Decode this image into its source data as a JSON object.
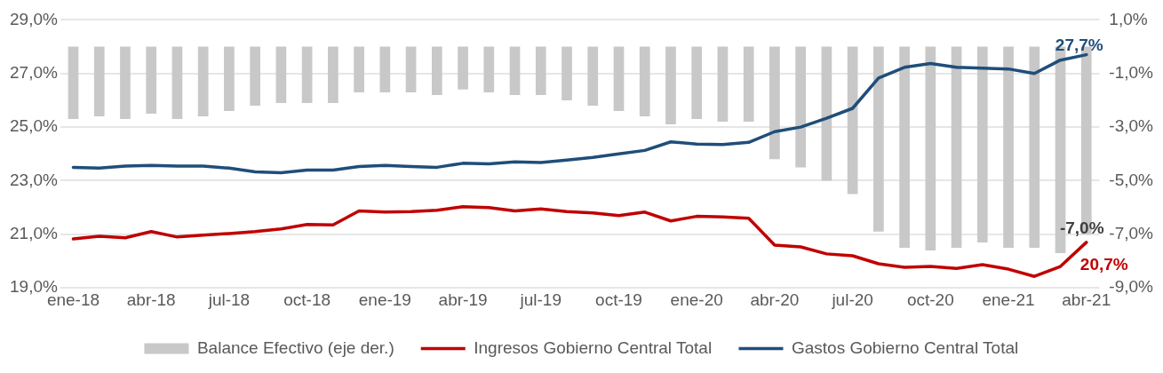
{
  "chart_data": {
    "type": "line",
    "categories": [
      "ene-18",
      null,
      null,
      "abr-18",
      null,
      null,
      "jul-18",
      null,
      null,
      "oct-18",
      null,
      null,
      "ene-19",
      null,
      null,
      "abr-19",
      null,
      null,
      "jul-19",
      null,
      null,
      "oct-19",
      null,
      null,
      "ene-20",
      null,
      null,
      "abr-20",
      null,
      null,
      "jul-20",
      null,
      null,
      "oct-20",
      null,
      null,
      "ene-21",
      null,
      null,
      "abr-21"
    ],
    "series": [
      {
        "name": "Balance Efectivo (eje der.)",
        "type": "bar",
        "axis": "y2",
        "color": "#c8c8c8",
        "values": [
          -2.7,
          -2.6,
          -2.7,
          -2.5,
          -2.7,
          -2.6,
          -2.4,
          -2.2,
          -2.1,
          -2.1,
          -2.1,
          -1.7,
          -1.7,
          -1.7,
          -1.8,
          -1.6,
          -1.7,
          -1.8,
          -1.8,
          -2.0,
          -2.2,
          -2.4,
          -2.6,
          -2.9,
          -2.7,
          -2.8,
          -2.8,
          -4.2,
          -4.5,
          -5.0,
          -5.5,
          -6.9,
          -7.5,
          -7.6,
          -7.5,
          -7.3,
          -7.5,
          -7.5,
          -7.7,
          -7.0
        ],
        "value_labels": [
          null,
          null,
          null,
          null,
          null,
          null,
          null,
          null,
          null,
          null,
          null,
          null,
          null,
          null,
          null,
          null,
          null,
          null,
          null,
          null,
          null,
          null,
          null,
          null,
          null,
          null,
          null,
          null,
          null,
          null,
          null,
          null,
          null,
          null,
          null,
          null,
          null,
          null,
          null,
          "-7,0%"
        ]
      },
      {
        "name": "Ingresos Gobierno Central Total",
        "color": "#c00000",
        "values": [
          20.83,
          20.93,
          20.87,
          21.1,
          20.9,
          20.97,
          21.03,
          21.1,
          21.2,
          21.37,
          21.35,
          21.87,
          21.83,
          21.85,
          21.9,
          22.03,
          22.0,
          21.87,
          21.95,
          21.85,
          21.8,
          21.7,
          21.83,
          21.5,
          21.67,
          21.65,
          21.6,
          20.6,
          20.53,
          20.27,
          20.2,
          19.9,
          19.77,
          19.8,
          19.73,
          19.87,
          19.7,
          19.43,
          19.8,
          20.7
        ],
        "value_labels": [
          null,
          null,
          null,
          null,
          null,
          null,
          null,
          null,
          null,
          null,
          null,
          null,
          null,
          null,
          null,
          null,
          null,
          null,
          null,
          null,
          null,
          null,
          null,
          null,
          null,
          null,
          null,
          null,
          null,
          null,
          null,
          null,
          null,
          null,
          null,
          null,
          null,
          null,
          null,
          "20,7%"
        ]
      },
      {
        "name": "Gastos Gobierno Central Total",
        "color": "#1f4e79",
        "values": [
          23.5,
          23.47,
          23.55,
          23.57,
          23.55,
          23.55,
          23.47,
          23.33,
          23.3,
          23.4,
          23.4,
          23.53,
          23.57,
          23.53,
          23.5,
          23.65,
          23.63,
          23.7,
          23.68,
          23.77,
          23.87,
          24.0,
          24.13,
          24.45,
          24.37,
          24.35,
          24.43,
          24.83,
          25.0,
          25.33,
          25.7,
          26.83,
          27.23,
          27.37,
          27.23,
          27.2,
          27.17,
          27.0,
          27.5,
          27.7
        ],
        "value_labels": [
          null,
          null,
          null,
          null,
          null,
          null,
          null,
          null,
          null,
          null,
          null,
          null,
          null,
          null,
          null,
          null,
          null,
          null,
          null,
          null,
          null,
          null,
          null,
          null,
          null,
          null,
          null,
          null,
          null,
          null,
          null,
          null,
          null,
          null,
          null,
          null,
          null,
          null,
          null,
          "27,7%"
        ]
      }
    ],
    "ylim": [
      19,
      29
    ],
    "yticks": [
      {
        "value": 19,
        "label": "19,0%"
      },
      {
        "value": 21,
        "label": "21,0%"
      },
      {
        "value": 23,
        "label": "23,0%"
      },
      {
        "value": 25,
        "label": "25,0%"
      },
      {
        "value": 27,
        "label": "27,0%"
      },
      {
        "value": 29,
        "label": "29,0%"
      }
    ],
    "y2lim": [
      -9,
      1
    ],
    "y2ticks": [
      {
        "value": -9,
        "label": "-9,0%"
      },
      {
        "value": -7,
        "label": "-7,0%"
      },
      {
        "value": -5,
        "label": "-5,0%"
      },
      {
        "value": -3,
        "label": "-3,0%"
      },
      {
        "value": -1,
        "label": "-1,0%"
      },
      {
        "value": 1,
        "label": "1,0%"
      }
    ],
    "grid": "y",
    "legend": "bottom",
    "marker": "none",
    "line_style": "solid"
  }
}
